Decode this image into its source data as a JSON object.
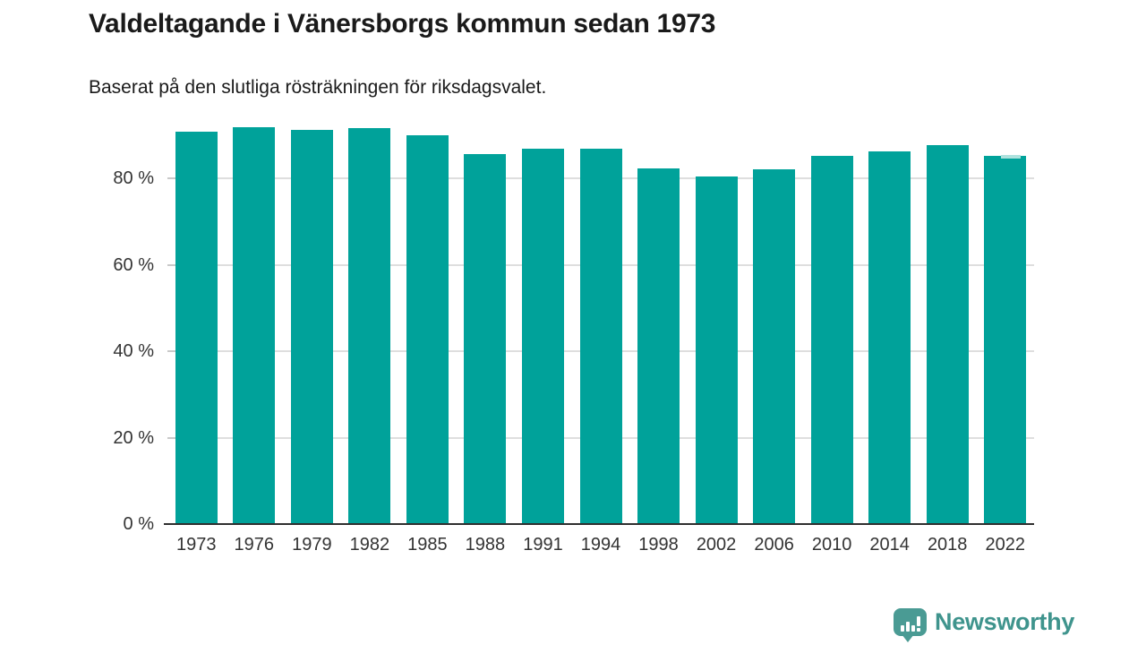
{
  "page": {
    "background": "#ffffff"
  },
  "chart_data": {
    "type": "bar",
    "title": "Valdeltagande i Vänersborgs kommun sedan 1973",
    "subtitle": "Baserat på den slutliga rösträkningen för riksdagsvalet.",
    "categories": [
      "1973",
      "1976",
      "1979",
      "1982",
      "1985",
      "1988",
      "1991",
      "1994",
      "1998",
      "2002",
      "2006",
      "2010",
      "2014",
      "2018",
      "2022"
    ],
    "values": [
      90.8,
      92.0,
      91.3,
      91.8,
      90.0,
      85.6,
      86.9,
      87.0,
      82.4,
      80.4,
      82.2,
      85.3,
      86.4,
      87.8,
      85.2
    ],
    "unit": "%",
    "ylim": [
      0,
      100
    ],
    "yticks": [
      0,
      20,
      40,
      60,
      80
    ],
    "ytick_labels": [
      "0 %",
      "20 %",
      "40 %",
      "60 %",
      "80 %"
    ],
    "xlabel": "",
    "ylabel": "",
    "grid": true,
    "legend": "none",
    "last_bar_highlight": {
      "category": "2022",
      "style": "light-cap"
    },
    "colors": {
      "bar": "#00a29a",
      "last_bar_cap": "#aee2de",
      "gridline": "#dedede",
      "tick": "#c9c9c9",
      "baseline": "#2f2f2f",
      "title_text": "#1a1a1a",
      "axis_text": "#333333"
    }
  },
  "footer": {
    "logo_text": "Newsworthy",
    "logo_color": "#4a9b94",
    "logo_text_color": "#3f948d",
    "logo_icon": "bar-chart-speech-bubble-icon"
  }
}
